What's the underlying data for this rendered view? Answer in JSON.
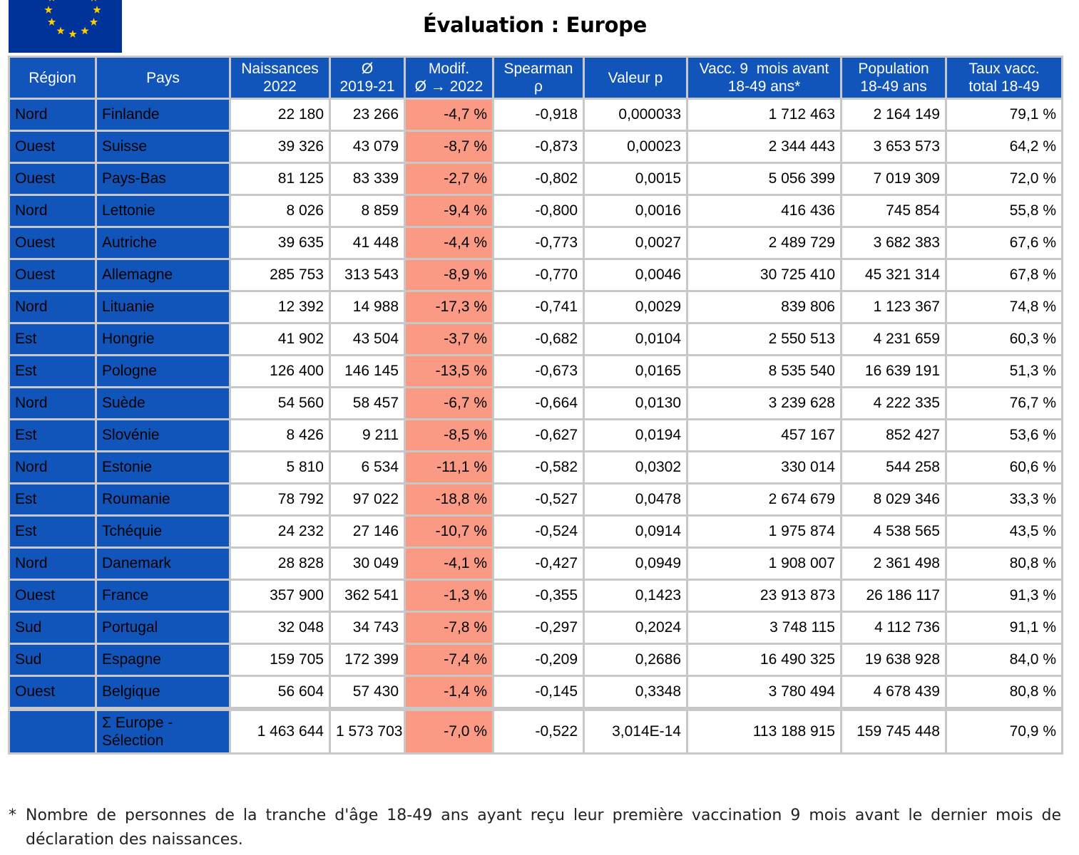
{
  "title": "Évaluation : Europe",
  "colors": {
    "header_blue": "#1155bb",
    "modif_salmon": "#fb9a84",
    "flag_blue": "#003399",
    "flag_star": "#ffcc00"
  },
  "flag_icon": "eu-flag-icon",
  "headers": {
    "region": "Région",
    "pays": "Pays",
    "naissances_1": "Naissances",
    "naissances_2": "2022",
    "moy_1": "Ø",
    "moy_2": "2019-21",
    "modif_1": "Modif.",
    "modif_2": "Ø → 2022",
    "spearman_1": "Spearman",
    "spearman_2": "ρ",
    "valeur_p": "Valeur p",
    "vacc_1": "Vacc. 9  mois avant",
    "vacc_2": "18-49 ans*",
    "pop_1": "Population",
    "pop_2": "18-49 ans",
    "taux_1": "Taux vacc.",
    "taux_2": "total 18-49"
  },
  "rows": [
    {
      "region": "Nord",
      "pays": "Finlande",
      "naissances": "22 180",
      "moy": "23 266",
      "modif": "-4,7 %",
      "spearman": "-0,918",
      "p": "0,000033",
      "vacc": "1 712 463",
      "pop": "2 164 149",
      "taux": "79,1 %"
    },
    {
      "region": "Ouest",
      "pays": "Suisse",
      "naissances": "39 326",
      "moy": "43 079",
      "modif": "-8,7 %",
      "spearman": "-0,873",
      "p": "0,00023",
      "vacc": "2 344 443",
      "pop": "3 653 573",
      "taux": "64,2 %"
    },
    {
      "region": "Ouest",
      "pays": "Pays-Bas",
      "naissances": "81 125",
      "moy": "83 339",
      "modif": "-2,7 %",
      "spearman": "-0,802",
      "p": "0,0015",
      "vacc": "5 056 399",
      "pop": "7 019 309",
      "taux": "72,0 %"
    },
    {
      "region": "Nord",
      "pays": "Lettonie",
      "naissances": "8 026",
      "moy": "8 859",
      "modif": "-9,4 %",
      "spearman": "-0,800",
      "p": "0,0016",
      "vacc": "416 436",
      "pop": "745 854",
      "taux": "55,8 %"
    },
    {
      "region": "Ouest",
      "pays": "Autriche",
      "naissances": "39 635",
      "moy": "41 448",
      "modif": "-4,4 %",
      "spearman": "-0,773",
      "p": "0,0027",
      "vacc": "2 489 729",
      "pop": "3 682 383",
      "taux": "67,6 %"
    },
    {
      "region": "Ouest",
      "pays": "Allemagne",
      "naissances": "285 753",
      "moy": "313 543",
      "modif": "-8,9 %",
      "spearman": "-0,770",
      "p": "0,0046",
      "vacc": "30 725 410",
      "pop": "45 321 314",
      "taux": "67,8 %"
    },
    {
      "region": "Nord",
      "pays": "Lituanie",
      "naissances": "12 392",
      "moy": "14 988",
      "modif": "-17,3 %",
      "spearman": "-0,741",
      "p": "0,0029",
      "vacc": "839 806",
      "pop": "1 123 367",
      "taux": "74,8 %"
    },
    {
      "region": "Est",
      "pays": "Hongrie",
      "naissances": "41 902",
      "moy": "43 504",
      "modif": "-3,7 %",
      "spearman": "-0,682",
      "p": "0,0104",
      "vacc": "2 550 513",
      "pop": "4 231 659",
      "taux": "60,3 %"
    },
    {
      "region": "Est",
      "pays": "Pologne",
      "naissances": "126 400",
      "moy": "146 145",
      "modif": "-13,5 %",
      "spearman": "-0,673",
      "p": "0,0165",
      "vacc": "8 535 540",
      "pop": "16 639 191",
      "taux": "51,3 %"
    },
    {
      "region": "Nord",
      "pays": "Suède",
      "naissances": "54 560",
      "moy": "58 457",
      "modif": "-6,7 %",
      "spearman": "-0,664",
      "p": "0,0130",
      "vacc": "3 239 628",
      "pop": "4 222 335",
      "taux": "76,7 %"
    },
    {
      "region": "Est",
      "pays": "Slovénie",
      "naissances": "8 426",
      "moy": "9 211",
      "modif": "-8,5 %",
      "spearman": "-0,627",
      "p": "0,0194",
      "vacc": "457 167",
      "pop": "852 427",
      "taux": "53,6 %"
    },
    {
      "region": "Nord",
      "pays": "Estonie",
      "naissances": "5 810",
      "moy": "6 534",
      "modif": "-11,1 %",
      "spearman": "-0,582",
      "p": "0,0302",
      "vacc": "330 014",
      "pop": "544 258",
      "taux": "60,6 %"
    },
    {
      "region": "Est",
      "pays": "Roumanie",
      "naissances": "78 792",
      "moy": "97 022",
      "modif": "-18,8 %",
      "spearman": "-0,527",
      "p": "0,0478",
      "vacc": "2 674 679",
      "pop": "8 029 346",
      "taux": "33,3 %"
    },
    {
      "region": "Est",
      "pays": "Tchéquie",
      "naissances": "24 232",
      "moy": "27 146",
      "modif": "-10,7 %",
      "spearman": "-0,524",
      "p": "0,0914",
      "vacc": "1 975 874",
      "pop": "4 538 565",
      "taux": "43,5 %"
    },
    {
      "region": "Nord",
      "pays": "Danemark",
      "naissances": "28 828",
      "moy": "30 049",
      "modif": "-4,1 %",
      "spearman": "-0,427",
      "p": "0,0949",
      "vacc": "1 908 007",
      "pop": "2 361 498",
      "taux": "80,8 %"
    },
    {
      "region": "Ouest",
      "pays": "France",
      "naissances": "357 900",
      "moy": "362 541",
      "modif": "-1,3 %",
      "spearman": "-0,355",
      "p": "0,1423",
      "vacc": "23 913 873",
      "pop": "26 186 117",
      "taux": "91,3 %"
    },
    {
      "region": "Sud",
      "pays": "Portugal",
      "naissances": "32 048",
      "moy": "34 743",
      "modif": "-7,8 %",
      "spearman": "-0,297",
      "p": "0,2024",
      "vacc": "3 748 115",
      "pop": "4 112 736",
      "taux": "91,1 %"
    },
    {
      "region": "Sud",
      "pays": "Espagne",
      "naissances": "159 705",
      "moy": "172 399",
      "modif": "-7,4 %",
      "spearman": "-0,209",
      "p": "0,2686",
      "vacc": "16 490 325",
      "pop": "19 638 928",
      "taux": "84,0 %"
    },
    {
      "region": "Ouest",
      "pays": "Belgique",
      "naissances": "56 604",
      "moy": "57 430",
      "modif": "-1,4 %",
      "spearman": "-0,145",
      "p": "0,3348",
      "vacc": "3 780 494",
      "pop": "4 678 439",
      "taux": "80,8 %"
    }
  ],
  "total": {
    "region": "",
    "pays": "Σ Europe - Sélection",
    "naissances": "1 463 644",
    "moy": "1 573 703",
    "modif": "-7,0 %",
    "spearman": "-0,522",
    "p": "3,014E-14",
    "vacc": "113 188 915",
    "pop": "159 745 448",
    "taux": "70,9 %"
  },
  "footnote": {
    "mark": "*",
    "text": "Nombre de personnes de la tranche d'âge 18-49 ans ayant reçu leur première vaccination 9 mois avant le dernier mois de déclaration des naissances."
  }
}
